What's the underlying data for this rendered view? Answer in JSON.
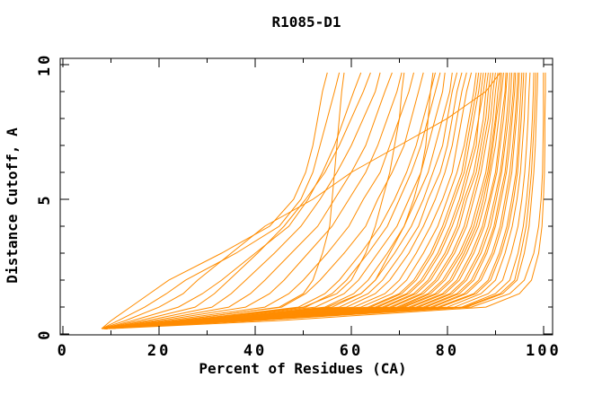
{
  "figure": {
    "background": "#ffffff",
    "frame_color": "#000000",
    "text_color": "#000000"
  },
  "chart_data": {
    "type": "line",
    "title": "R1085-D1",
    "xlabel": "Percent of Residues (CA)",
    "ylabel": "Distance Cutoff, A",
    "xlim": [
      -0.6,
      101.9
    ],
    "ylim": [
      -0.03,
      10.23
    ],
    "xticks_major": [
      0,
      20,
      40,
      60,
      80,
      100
    ],
    "xticks_minor": [
      10,
      30,
      50,
      70,
      90
    ],
    "yticks_major": [
      0,
      5,
      10
    ],
    "yticks_minor": [
      1,
      2,
      3,
      4,
      6,
      7,
      8,
      9
    ],
    "grid": false,
    "legend": "none",
    "line_color": "#FF8C00",
    "n_series": 51,
    "series_format": "each series lists x (percent of residues) at the shared y_levels (distance cutoff, A)",
    "y_levels": [
      0.2,
      0.5,
      1,
      1.5,
      2,
      3,
      4,
      5,
      6,
      7,
      8,
      9,
      9.7
    ],
    "series": [
      [
        8,
        10,
        14,
        18,
        22,
        33,
        43,
        48,
        50.5,
        52,
        53,
        54,
        55
      ],
      [
        8,
        11.5,
        17,
        21.5,
        25.5,
        36,
        45,
        49.5,
        52,
        53.5,
        55,
        56.5,
        57.5
      ],
      [
        8,
        13,
        20,
        25,
        28,
        35,
        42,
        52,
        60,
        70,
        80,
        88,
        91
      ],
      [
        8.2,
        14.5,
        24,
        29,
        33,
        40,
        47,
        51,
        54,
        56.5,
        58.5,
        60.5,
        62
      ],
      [
        8.2,
        16,
        27.5,
        31.5,
        34.5,
        40.5,
        46,
        50.5,
        54.5,
        57.5,
        60,
        62.5,
        64
      ],
      [
        8.3,
        17.5,
        31,
        35,
        38,
        44,
        49.5,
        53.5,
        57,
        60,
        62.5,
        65,
        66
      ],
      [
        8.3,
        19,
        34.5,
        39,
        42,
        47.5,
        53,
        56.5,
        60,
        63,
        65,
        67,
        68.5
      ],
      [
        8.4,
        20.5,
        38,
        43,
        46,
        51,
        56,
        59.5,
        63,
        65.5,
        67.5,
        69.5,
        70.5
      ],
      [
        8.4,
        22,
        42,
        47,
        50,
        55,
        59.5,
        62.5,
        66,
        68,
        70,
        72,
        73
      ],
      [
        8.5,
        23.5,
        45.5,
        50.5,
        53.5,
        58.5,
        63,
        65.5,
        68.5,
        71,
        72.5,
        74,
        75
      ],
      [
        8.5,
        24,
        45,
        50,
        52,
        54,
        55.5,
        56,
        56.5,
        57,
        57.5,
        58,
        58.5
      ],
      [
        8.6,
        28,
        50,
        57,
        60,
        63,
        65,
        66.5,
        68,
        69,
        70,
        70.5,
        71
      ],
      [
        8.7,
        30,
        55,
        62,
        65,
        68,
        71,
        73,
        74.5,
        75.5,
        76,
        76.5,
        77
      ],
      [
        8.5,
        25,
        49,
        54.5,
        57.5,
        62,
        66,
        69,
        71.5,
        73.5,
        75,
        76.5,
        77.5
      ],
      [
        8.5,
        25.5,
        50.5,
        56,
        59,
        63.5,
        67.5,
        70,
        72.5,
        74.5,
        76,
        77.5,
        78.5
      ],
      [
        8.6,
        26.5,
        52.5,
        58.5,
        61.5,
        65.5,
        69.5,
        72,
        74.5,
        76,
        77.5,
        79,
        79.5
      ],
      [
        8.6,
        27.5,
        54.5,
        60.5,
        63.5,
        67.5,
        71,
        73.5,
        76,
        77.5,
        79,
        80.5,
        81
      ],
      [
        8.6,
        28,
        56,
        62,
        65,
        69,
        72.5,
        75,
        77,
        79,
        80,
        81,
        82
      ],
      [
        8.6,
        28.5,
        57.5,
        63.5,
        66.5,
        70.5,
        74,
        76,
        78.5,
        80,
        81,
        82,
        83
      ],
      [
        8.7,
        29,
        59,
        65,
        68,
        72,
        75,
        77.5,
        79.5,
        81,
        82,
        83,
        84
      ],
      [
        8.7,
        30,
        60.5,
        67,
        70,
        73.5,
        76.5,
        79,
        81,
        82,
        83,
        84,
        85
      ],
      [
        8.7,
        30.5,
        62,
        68.5,
        71.5,
        75,
        78,
        80,
        82,
        83.5,
        84.5,
        85.5,
        86
      ],
      [
        8.7,
        31,
        63.5,
        70,
        73,
        76.5,
        79,
        81,
        83,
        84,
        85,
        86,
        86.5
      ],
      [
        8.7,
        32,
        64,
        70.5,
        73.5,
        77,
        79.5,
        81.5,
        83.5,
        84.5,
        85.5,
        86.5,
        87
      ],
      [
        8.8,
        31.5,
        65,
        71.5,
        74.5,
        78,
        80.5,
        82.5,
        84,
        85.5,
        86.5,
        87,
        87.5
      ],
      [
        8.8,
        32.5,
        65.5,
        72,
        75,
        78.5,
        81,
        83,
        84.5,
        86,
        86.5,
        87.5,
        88
      ],
      [
        8.8,
        32.5,
        66.5,
        73,
        76,
        79.5,
        82,
        83.5,
        85.5,
        86.5,
        87.5,
        88,
        88.5
      ],
      [
        8.8,
        33.5,
        67,
        73.5,
        76.5,
        80,
        82.5,
        84,
        86,
        87,
        88,
        88.5,
        89
      ],
      [
        8.8,
        33,
        68,
        74.5,
        77.5,
        81,
        83.5,
        85,
        86.5,
        87.5,
        88.5,
        89,
        89.5
      ],
      [
        8.8,
        34,
        68.5,
        75,
        78,
        81.5,
        84,
        85.5,
        87,
        88,
        89,
        89.5,
        90
      ],
      [
        8.9,
        33.5,
        69.5,
        76,
        79,
        82.5,
        85,
        86.5,
        88,
        88.8,
        89.5,
        90,
        90.5
      ],
      [
        8.9,
        34.5,
        70,
        76.5,
        79.5,
        83,
        85.5,
        87,
        88.4,
        89.2,
        90,
        90.5,
        91
      ],
      [
        8.9,
        34,
        70.5,
        77.5,
        80.5,
        83.5,
        86,
        87.5,
        88.7,
        89.5,
        90.2,
        91,
        91.3
      ],
      [
        8.9,
        35,
        71,
        78,
        81,
        84,
        86.5,
        88,
        89,
        90,
        90.7,
        91.3,
        91.7
      ],
      [
        8.9,
        34.5,
        72,
        79,
        82,
        85,
        87.3,
        88.7,
        90,
        90.7,
        91.3,
        92,
        92.2
      ],
      [
        8.9,
        35.5,
        72.5,
        79.5,
        82.5,
        85.5,
        87.7,
        89,
        90.3,
        91,
        91.7,
        92.2,
        92.5
      ],
      [
        9,
        35,
        73.5,
        80.5,
        83.5,
        86.5,
        88.5,
        89.8,
        91,
        91.7,
        92.3,
        92.8,
        93
      ],
      [
        9,
        36,
        74,
        81,
        84,
        87,
        89,
        90.2,
        91.3,
        92,
        92.7,
        93.2,
        93.4
      ],
      [
        9,
        35.5,
        75,
        82,
        85,
        87.8,
        89.7,
        90.8,
        92,
        92.6,
        93.2,
        93.7,
        93.9
      ],
      [
        9,
        36.5,
        75.5,
        82.5,
        85.5,
        88.2,
        90,
        91.2,
        92.3,
        93,
        93.5,
        94,
        94.2
      ],
      [
        9,
        36,
        76.5,
        83.5,
        86.5,
        89.3,
        91,
        92,
        93,
        93.6,
        94.1,
        94.5,
        94.7
      ],
      [
        9,
        37,
        77,
        84,
        87,
        89.7,
        91.4,
        92.4,
        93.4,
        93.9,
        94.4,
        94.8,
        95
      ],
      [
        9,
        36.5,
        78,
        85.5,
        88.5,
        90.8,
        92.4,
        93.4,
        94.3,
        94.7,
        95,
        95.3,
        95.5
      ],
      [
        9,
        37.5,
        78.5,
        86,
        89,
        91.2,
        92.8,
        93.8,
        94.6,
        95,
        95.4,
        95.7,
        95.9
      ],
      [
        9,
        38,
        80,
        87,
        90,
        92,
        93.5,
        94.5,
        95.2,
        95.6,
        96,
        96.2,
        96.4
      ],
      [
        9,
        38.5,
        81.5,
        88.5,
        91.5,
        93.3,
        94.7,
        95.5,
        96.1,
        96.5,
        96.8,
        97,
        97.2
      ],
      [
        9,
        39,
        83,
        90,
        93,
        94.7,
        95.8,
        96.5,
        97,
        97.4,
        97.7,
        97.9,
        98
      ],
      [
        9,
        39.5,
        83.5,
        91,
        94,
        95.3,
        96.4,
        97,
        97.5,
        97.8,
        98.1,
        98.3,
        98.4
      ],
      [
        9,
        39.5,
        84,
        91.5,
        94.5,
        96,
        97,
        97.5,
        98,
        98.3,
        98.5,
        98.7,
        98.8
      ],
      [
        9,
        40,
        85,
        93,
        96,
        98,
        99,
        99.5,
        99.8,
        99.9,
        100,
        100,
        100
      ],
      [
        9.5,
        45,
        88,
        95,
        97.5,
        99,
        99.7,
        100,
        100.2,
        100.3,
        100.3,
        100.4,
        100.4
      ]
    ]
  }
}
